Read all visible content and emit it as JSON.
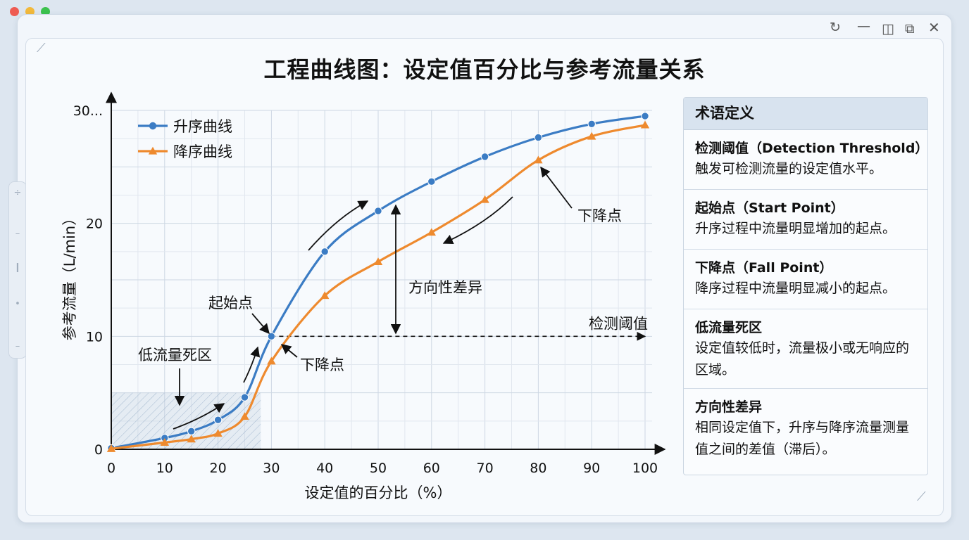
{
  "window": {
    "controls": [
      "refresh-icon",
      "minimize-icon",
      "split-view-icon",
      "restore-icon",
      "close-icon"
    ]
  },
  "chart_data": {
    "type": "line",
    "title": "工程曲线图：设定值百分比与参考流量关系",
    "xlabel": "设定值的百分比（%）",
    "ylabel": "参考流量（L/min）",
    "xlim": [
      0,
      100
    ],
    "ylim": [
      0,
      30
    ],
    "x_ticks": [
      0,
      10,
      20,
      30,
      40,
      50,
      60,
      70,
      80,
      90,
      100
    ],
    "y_ticks": [
      {
        "value": 0,
        "label": "0"
      },
      {
        "value": 10,
        "label": "10"
      },
      {
        "value": 20,
        "label": "20"
      },
      {
        "value": 30,
        "label": "30..."
      }
    ],
    "grid": true,
    "legend_position": "top-left",
    "series": [
      {
        "name": "升序曲线",
        "color": "#3b7cc4",
        "marker": "circle",
        "x": [
          0,
          10,
          15,
          20,
          25,
          30,
          40,
          50,
          60,
          70,
          80,
          90,
          100
        ],
        "y": [
          0.1,
          1.0,
          1.6,
          2.6,
          4.6,
          10.0,
          17.5,
          21.1,
          23.7,
          25.9,
          27.6,
          28.8,
          29.5
        ]
      },
      {
        "name": "降序曲线",
        "color": "#ee8a2e",
        "marker": "triangle",
        "x": [
          0,
          10,
          15,
          20,
          25,
          30,
          40,
          50,
          60,
          70,
          80,
          90,
          100
        ],
        "y": [
          0.05,
          0.6,
          0.9,
          1.4,
          2.9,
          7.8,
          13.6,
          16.6,
          19.2,
          22.1,
          25.6,
          27.7,
          28.7
        ]
      }
    ],
    "threshold": {
      "label": "检测阈值",
      "y": 10,
      "x_from": 30,
      "x_to": 100
    },
    "dead_zone": {
      "label": "低流量死区",
      "x_from": 0,
      "x_to": 28,
      "y_from": 0,
      "y_to": 5
    },
    "annotations": [
      {
        "id": "start-point",
        "text": "起始点"
      },
      {
        "id": "fall-point-low",
        "text": "下降点"
      },
      {
        "id": "fall-point-high",
        "text": "下降点"
      },
      {
        "id": "direction-diff",
        "text": "方向性差异"
      }
    ]
  },
  "glossary": {
    "title": "术语定义",
    "entries": [
      {
        "term": "检测阈值（Detection Threshold）",
        "definition": "触发可检测流量的设定值水平。"
      },
      {
        "term": "起始点（Start Point）",
        "definition": "升序过程中流量明显增加的起点。"
      },
      {
        "term": "下降点（Fall Point）",
        "definition": "降序过程中流量明显减小的起点。"
      },
      {
        "term": "低流量死区",
        "definition": "设定值较低时，流量极小或无响应的区域。"
      },
      {
        "term": "方向性差异",
        "definition": "相同设定值下，升序与降序流量测量值之间的差值（滞后）。"
      }
    ]
  }
}
